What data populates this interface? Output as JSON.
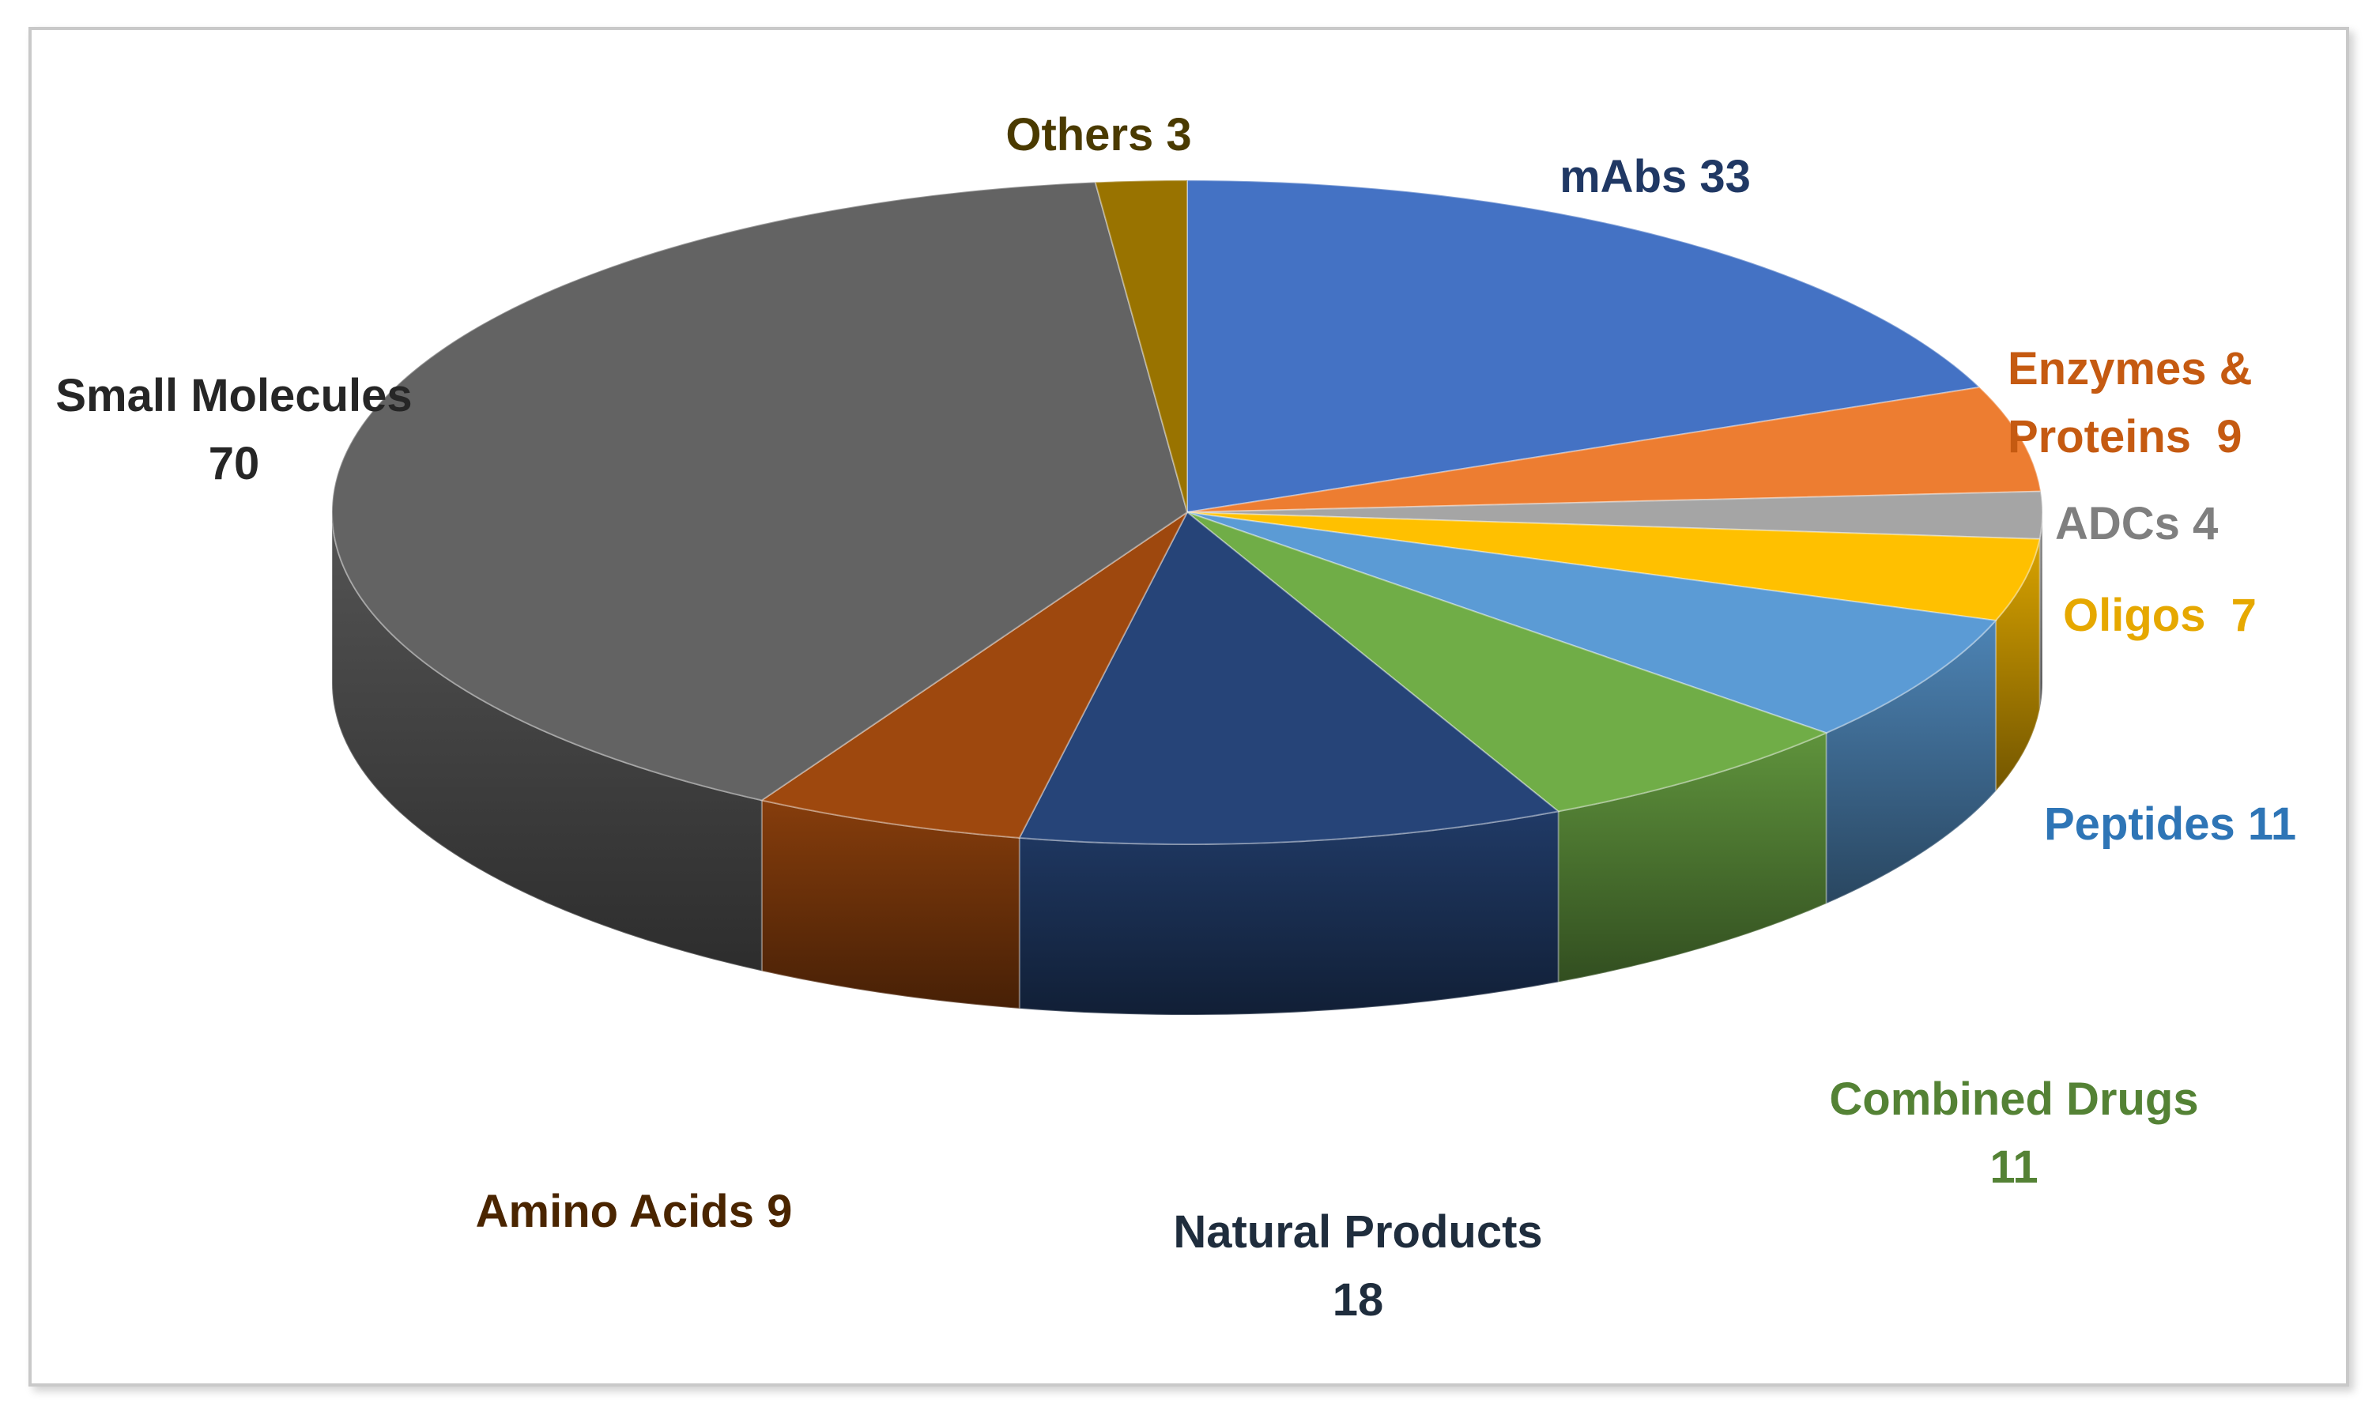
{
  "chart_data": {
    "type": "pie",
    "variant": "3d",
    "title": "",
    "slices": [
      {
        "name": "mAbs",
        "label": "mAbs 33",
        "value": 33,
        "color": "#4472c4",
        "label_color": "#203864"
      },
      {
        "name": "Enzymes & Proteins",
        "label_lines": [
          "Enzymes &",
          "Proteins  9"
        ],
        "value": 9,
        "color": "#ed7d31",
        "label_color": "#c55a11"
      },
      {
        "name": "ADCs",
        "label": "ADCs 4",
        "value": 4,
        "color": "#a5a5a5",
        "label_color": "#7f7f7f"
      },
      {
        "name": "Oligos",
        "label": "Oligos  7",
        "value": 7,
        "color": "#ffc000",
        "label_color": "#e6a800"
      },
      {
        "name": "Peptides",
        "label": "Peptides 11",
        "value": 11,
        "color": "#5b9bd5",
        "label_color": "#2e75b6"
      },
      {
        "name": "Combined Drugs",
        "label_lines": [
          "Combined Drugs",
          "11"
        ],
        "value": 11,
        "color": "#70ad47",
        "label_color": "#548235"
      },
      {
        "name": "Natural Products",
        "label_lines": [
          "Natural Products",
          "18"
        ],
        "value": 18,
        "color": "#264478",
        "label_color": "#1f2d3d"
      },
      {
        "name": "Amino Acids",
        "label": "Amino Acids 9",
        "value": 9,
        "color": "#9e480e",
        "label_color": "#4a2500"
      },
      {
        "name": "Small Molecules",
        "label_lines": [
          "Small Molecules",
          "70"
        ],
        "value": 70,
        "color": "#636363",
        "label_color": "#262626"
      },
      {
        "name": "Others",
        "label": "Others 3",
        "value": 3,
        "color": "#997300",
        "label_color": "#4a3a00"
      }
    ]
  }
}
